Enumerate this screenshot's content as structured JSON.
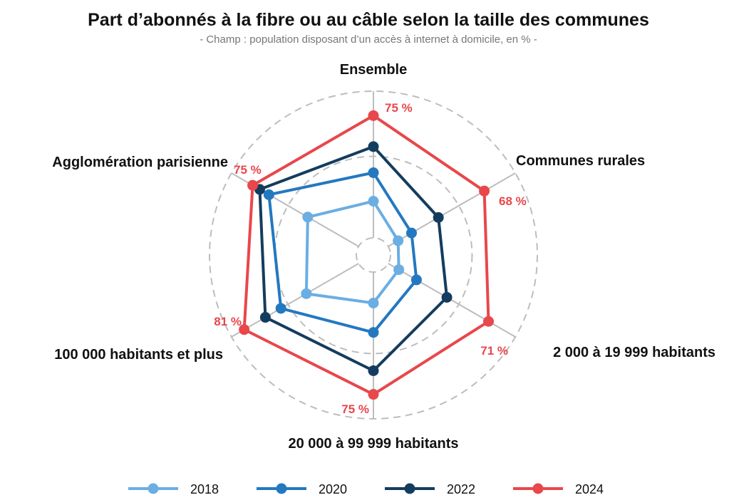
{
  "chart_data": {
    "type": "radar",
    "title": "Part d’abonnés à la fibre ou au câble selon la taille des communes",
    "subtitle": "- Champ : population disposant d’un accès à internet à domicile, en % -",
    "categories": [
      "Ensemble",
      "Communes rurales",
      "2 000 à 19 999 habitants",
      "20 000 à 99 999 habitants",
      "100 000 habitants et plus",
      "Agglomération parisienne"
    ],
    "rlim": [
      0,
      90
    ],
    "grid_circles": [
      0,
      50,
      90
    ],
    "legend_position": "bottom",
    "series": [
      {
        "name": "2018",
        "color": "#6aaee3",
        "values": [
          22.5,
          7,
          7.5,
          19,
          37,
          36
        ]
      },
      {
        "name": "2020",
        "color": "#2478c0",
        "values": [
          40,
          16.5,
          20,
          37,
          55,
          63.5
        ]
      },
      {
        "name": "2022",
        "color": "#143c5e",
        "values": [
          56,
          35.5,
          41.5,
          60.5,
          66,
          70
        ]
      },
      {
        "name": "2024",
        "color": "#e8474b",
        "values": [
          75,
          68,
          71,
          75,
          81,
          75
        ]
      }
    ],
    "data_labels": [
      "75 %",
      "68 %",
      "71 %",
      "75 %",
      "81 %",
      "75 %"
    ]
  }
}
